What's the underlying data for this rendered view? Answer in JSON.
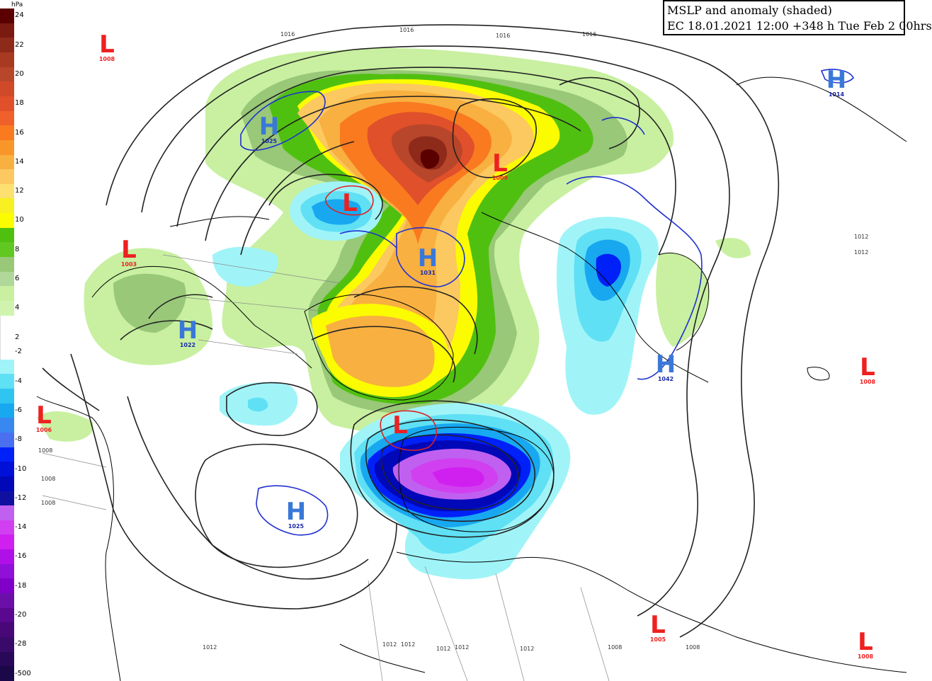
{
  "title": {
    "line1": "MSLP and anomaly (shaded)",
    "line2": "EC 18.01.2021 12:00 +348 h Tue Feb 2 00hrs"
  },
  "legend": {
    "unit": "hPa",
    "bins": [
      {
        "label": "24",
        "color": "#5a0000"
      },
      {
        "label": "",
        "color": "#7a1a10"
      },
      {
        "label": "22",
        "color": "#8e2a1a"
      },
      {
        "label": "",
        "color": "#a83a22"
      },
      {
        "label": "20",
        "color": "#b8462a"
      },
      {
        "label": "",
        "color": "#d04a2a"
      },
      {
        "label": "18",
        "color": "#e0502a"
      },
      {
        "label": "",
        "color": "#f0602a"
      },
      {
        "label": "16",
        "color": "#fa7a20"
      },
      {
        "label": "",
        "color": "#f8962a"
      },
      {
        "label": "14",
        "color": "#f8b040"
      },
      {
        "label": "",
        "color": "#fcc860"
      },
      {
        "label": "12",
        "color": "#fce070"
      },
      {
        "label": "",
        "color": "#f8f020"
      },
      {
        "label": "10",
        "color": "#fcfc00"
      },
      {
        "label": "",
        "color": "#50c010"
      },
      {
        "label": "8",
        "color": "#60c820"
      },
      {
        "label": "",
        "color": "#98c878"
      },
      {
        "label": "6",
        "color": "#b0d89a"
      },
      {
        "label": "",
        "color": "#c8f0a0"
      },
      {
        "label": "4",
        "color": "#d0f4b0"
      },
      {
        "label": "",
        "color": "#ffffff"
      },
      {
        "label": "2",
        "color": "#ffffff"
      },
      {
        "label": "-2",
        "color": "#ffffff"
      },
      {
        "label": "",
        "color": "#a0f4f8"
      },
      {
        "label": "-4",
        "color": "#60e0f4"
      },
      {
        "label": "",
        "color": "#30c4f0"
      },
      {
        "label": "-6",
        "color": "#18a8f0"
      },
      {
        "label": "",
        "color": "#3888f0"
      },
      {
        "label": "-8",
        "color": "#4a70f0"
      },
      {
        "label": "",
        "color": "#0020f8"
      },
      {
        "label": "-10",
        "color": "#0010d8"
      },
      {
        "label": "",
        "color": "#0008b8"
      },
      {
        "label": "-12",
        "color": "#1010a0"
      },
      {
        "label": "",
        "color": "#c060f0"
      },
      {
        "label": "-14",
        "color": "#d040f0"
      },
      {
        "label": "",
        "color": "#d020f0"
      },
      {
        "label": "-16",
        "color": "#b010e8"
      },
      {
        "label": "",
        "color": "#9010d8"
      },
      {
        "label": "-18",
        "color": "#8000c8"
      },
      {
        "label": "",
        "color": "#6a10a8"
      },
      {
        "label": "-20",
        "color": "#5a0890"
      },
      {
        "label": "",
        "color": "#480878"
      },
      {
        "label": "-28",
        "color": "#3a0a6a"
      },
      {
        "label": "",
        "color": "#2a0858"
      },
      {
        "label": "-500",
        "color": "#1a0848"
      }
    ]
  },
  "pressure_centers": [
    {
      "type": "L",
      "value": "1008"
    },
    {
      "type": "H",
      "value": "1025"
    },
    {
      "type": "L",
      "value": ""
    },
    {
      "type": "L",
      "value": "1003"
    },
    {
      "type": "L",
      "value": "1009"
    },
    {
      "type": "H",
      "value": "1031"
    },
    {
      "type": "H",
      "value": "1022"
    },
    {
      "type": "L",
      "value": "1006"
    },
    {
      "type": "L",
      "value": ""
    },
    {
      "type": "H",
      "value": "1025"
    },
    {
      "type": "H",
      "value": "1014"
    },
    {
      "type": "H",
      "value": "1042"
    },
    {
      "type": "L",
      "value": "1008"
    },
    {
      "type": "L",
      "value": "1005"
    },
    {
      "type": "L",
      "value": "1008"
    }
  ],
  "isobar_labels": [
    "1016",
    "1016",
    "1016",
    "1016",
    "1012",
    "1012",
    "1008",
    "1008",
    "1008",
    "1012",
    "1012",
    "1012",
    "1012",
    "1012",
    "1012",
    "1008",
    "1008"
  ],
  "colors": {
    "low_marker": "#ee2020",
    "high_marker": "#3a78d8",
    "isobar": "#222222",
    "low_contour": "#e02020",
    "high_contour": "#2030d0"
  }
}
